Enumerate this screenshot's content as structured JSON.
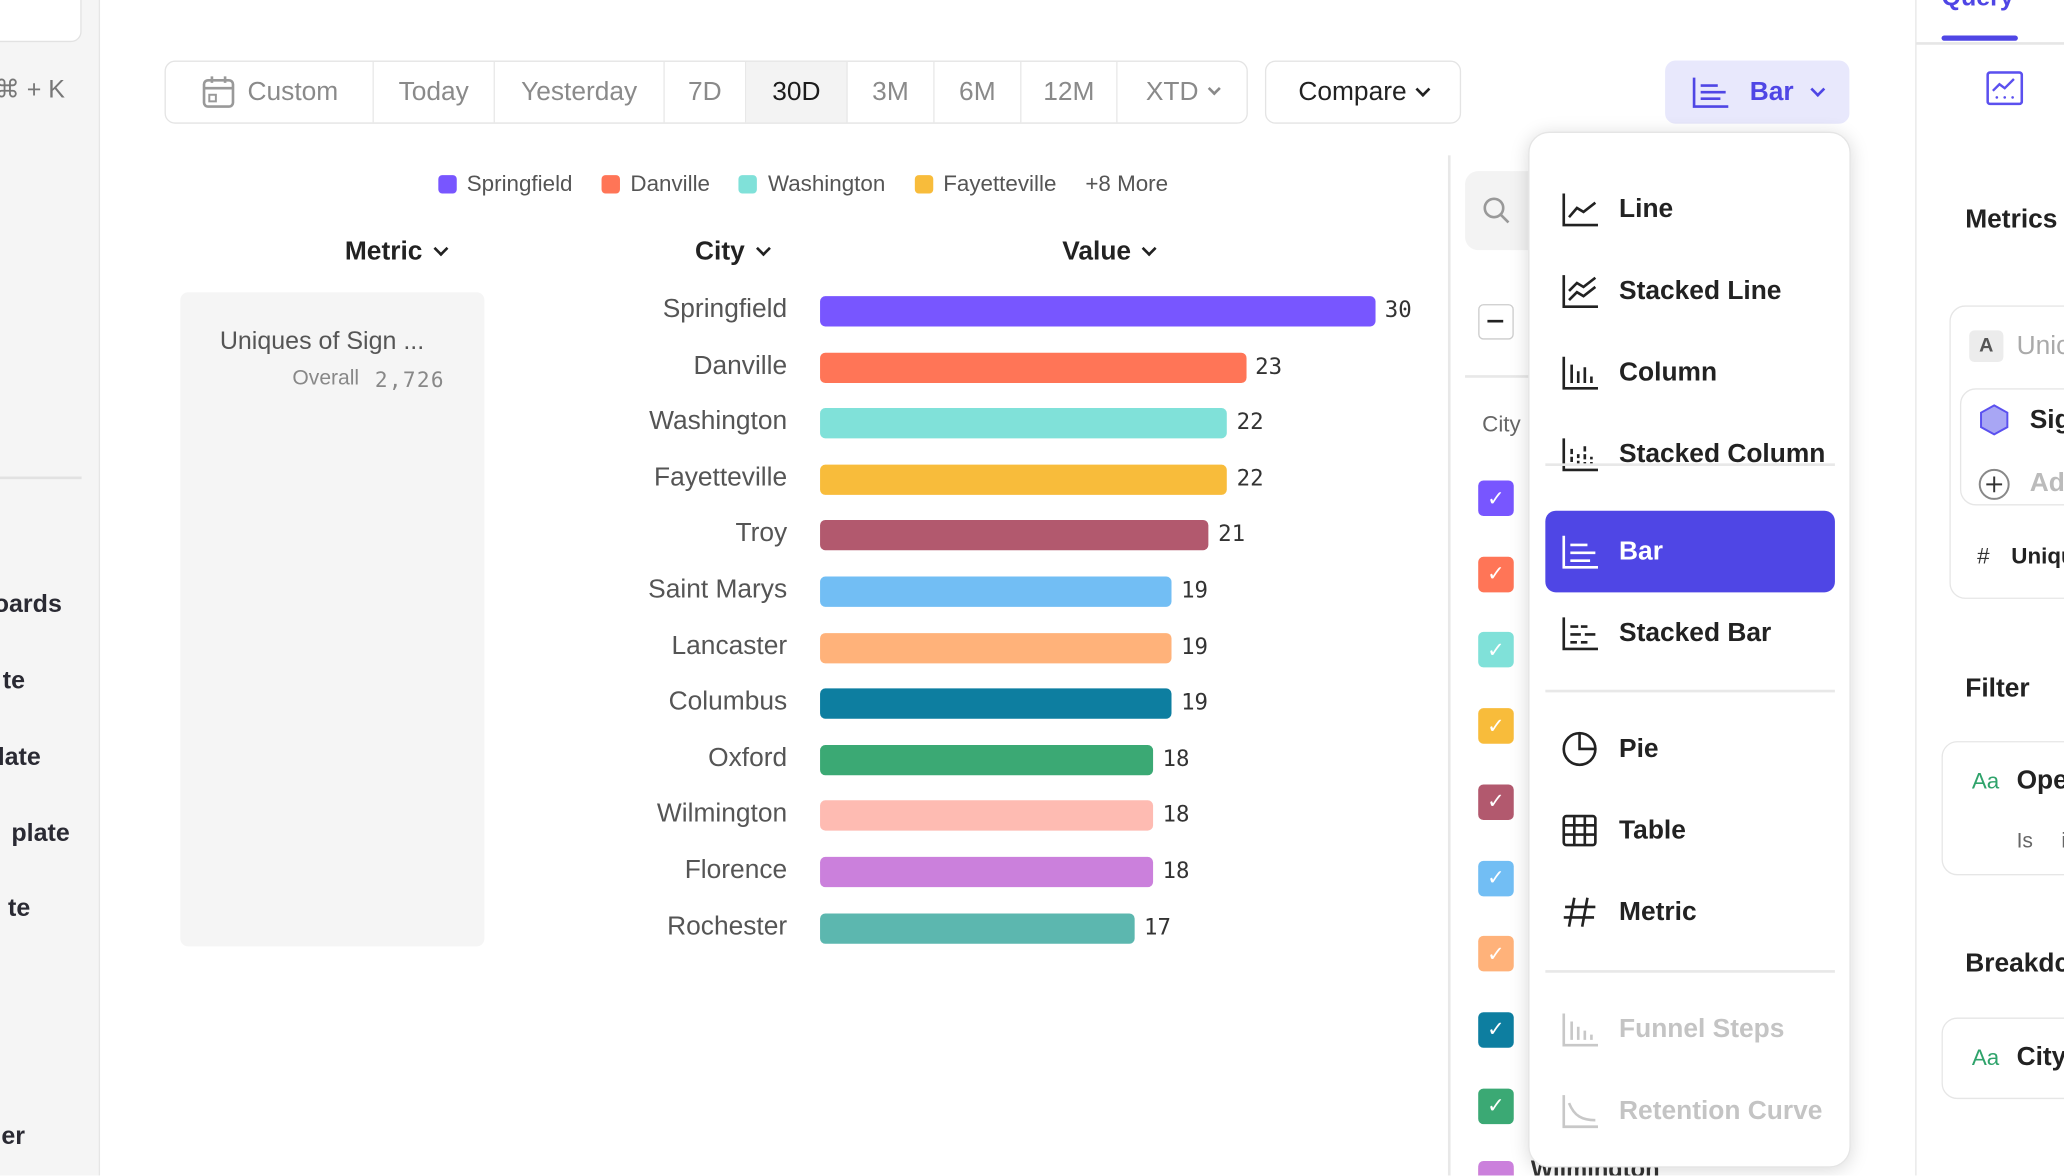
{
  "sidebar": {
    "shortcut": "⌘ + K",
    "items": [
      "oards",
      "te",
      "late",
      "plate",
      "te"
    ],
    "bottom_item": "er"
  },
  "toolbar": {
    "ranges": [
      "Custom",
      "Today",
      "Yesterday",
      "7D",
      "30D",
      "3M",
      "6M",
      "12M",
      "XTD"
    ],
    "active_range": "30D",
    "compare_label": "Compare",
    "chart_type_label": "Bar"
  },
  "legend": {
    "items": [
      {
        "name": "Springfield",
        "color": "#7856ff"
      },
      {
        "name": "Danville",
        "color": "#ff7557"
      },
      {
        "name": "Washington",
        "color": "#80e1d9"
      },
      {
        "name": "Fayetteville",
        "color": "#f8bc3b"
      }
    ],
    "more": "+8 More"
  },
  "columns": {
    "metric": "Metric",
    "city": "City",
    "value": "Value"
  },
  "metric_card": {
    "name": "Uniques of Sign ...",
    "overall_label": "Overall",
    "overall_value": "2,726"
  },
  "chart_data": {
    "type": "bar",
    "categories": [
      "Springfield",
      "Danville",
      "Washington",
      "Fayetteville",
      "Troy",
      "Saint Marys",
      "Lancaster",
      "Columbus",
      "Oxford",
      "Wilmington",
      "Florence",
      "Rochester"
    ],
    "values": [
      30,
      23,
      22,
      22,
      21,
      19,
      19,
      19,
      18,
      18,
      18,
      17
    ],
    "colors": [
      "#7856ff",
      "#ff7557",
      "#80e1d9",
      "#f8bc3b",
      "#b2596e",
      "#72bef4",
      "#ffb27a",
      "#0d7ea0",
      "#3ba974",
      "#febbb2",
      "#cb80dc",
      "#5cb7af"
    ],
    "orientation": "horizontal"
  },
  "city_panel": {
    "header": "City",
    "partial_label": "Wilmington"
  },
  "chart_menu": {
    "groups": [
      [
        {
          "label": "Line",
          "icon": "line-chart-icon"
        },
        {
          "label": "Stacked Line",
          "icon": "stacked-line-icon"
        },
        {
          "label": "Column",
          "icon": "column-chart-icon"
        },
        {
          "label": "Stacked Column",
          "icon": "stacked-column-icon"
        }
      ],
      [
        {
          "label": "Bar",
          "icon": "bar-chart-icon",
          "selected": true
        },
        {
          "label": "Stacked Bar",
          "icon": "stacked-bar-icon"
        }
      ],
      [
        {
          "label": "Pie",
          "icon": "pie-chart-icon"
        },
        {
          "label": "Table",
          "icon": "table-icon"
        },
        {
          "label": "Metric",
          "icon": "hash-icon"
        }
      ],
      [
        {
          "label": "Funnel Steps",
          "icon": "funnel-icon",
          "disabled": true
        },
        {
          "label": "Retention Curve",
          "icon": "retention-icon",
          "disabled": true
        }
      ]
    ]
  },
  "right_panel": {
    "tab": "Query",
    "metrics_title": "Metrics",
    "metric_badge": "A",
    "metric_name": "Unic",
    "event_name": "Sig",
    "add_label": "Adc",
    "measure": "Uniqu",
    "filter_title": "Filter",
    "filter_type": "Aa",
    "filter_prop": "Ope",
    "filter_op": "Is",
    "filter_val": "i",
    "breakdown_title": "Breakdc",
    "breakdown_type": "Aa",
    "breakdown_prop": "City"
  },
  "colors": {
    "accent": "#4f46e5",
    "accent_light": "#e8e8fc"
  }
}
